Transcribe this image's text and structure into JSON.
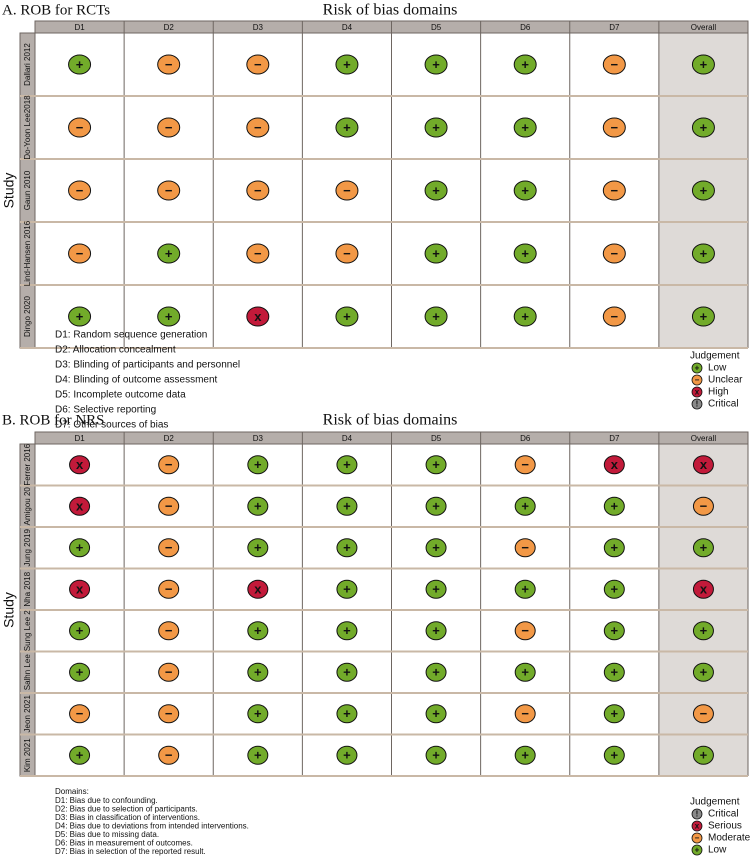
{
  "panels": [
    {
      "label": "A. ROB for RCTs",
      "title": "Risk of bias domains",
      "y_label": "Study",
      "columns": [
        "D1",
        "D2",
        "D3",
        "D4",
        "D5",
        "D6",
        "D7",
        "Overall"
      ],
      "rows": [
        {
          "study": "Dallari 2012",
          "judgements": [
            "Low",
            "Unclear",
            "Unclear",
            "Low",
            "Low",
            "Low",
            "Unclear",
            "Low"
          ]
        },
        {
          "study": "Do-Yoon Lee2018",
          "judgements": [
            "Unclear",
            "Unclear",
            "Unclear",
            "Low",
            "Low",
            "Low",
            "Unclear",
            "Low"
          ]
        },
        {
          "study": "Gaun 2010",
          "judgements": [
            "Unclear",
            "Unclear",
            "Unclear",
            "Unclear",
            "Low",
            "Low",
            "Unclear",
            "Low"
          ]
        },
        {
          "study": "Lind-Hansen 2016",
          "judgements": [
            "Unclear",
            "Low",
            "Unclear",
            "Unclear",
            "Low",
            "Low",
            "Unclear",
            "Low"
          ]
        },
        {
          "study": "Dingo 2020",
          "judgements": [
            "Low",
            "Low",
            "High",
            "Low",
            "Low",
            "Low",
            "Unclear",
            "Low"
          ]
        }
      ],
      "domain_notes": [
        "D1: Random sequence generation",
        "D2: Allocation concealment",
        "D3: Blinding of participants and personnel",
        "D4: Blinding of outcome assessment",
        "D5: Incomplete outcome data",
        "D6: Selective reporting",
        "D7: Other sources of bias"
      ],
      "legend_title": "Judgement",
      "legend": [
        {
          "label": "Low",
          "symbol": "+",
          "color": "#72ab2a"
        },
        {
          "label": "Unclear",
          "symbol": "−",
          "color": "#f29846"
        },
        {
          "label": "High",
          "symbol": "x",
          "color": "#c21a3a"
        },
        {
          "label": "Critical",
          "symbol": "!",
          "color": "#8a8a8a"
        }
      ]
    },
    {
      "label": "B. ROB for NRS",
      "title": "Risk of bias domains",
      "y_label": "Study",
      "columns": [
        "D1",
        "D2",
        "D3",
        "D4",
        "D5",
        "D6",
        "D7",
        "Overall"
      ],
      "rows": [
        {
          "study": "Ferrer 2016",
          "judgements": [
            "Serious",
            "Moderate",
            "Low",
            "Low",
            "Low",
            "Moderate",
            "Serious",
            "Serious"
          ]
        },
        {
          "study": "Amigou 20",
          "judgements": [
            "Serious",
            "Moderate",
            "Low",
            "Low",
            "Low",
            "Low",
            "Low",
            "Moderate"
          ]
        },
        {
          "study": "Jung 2019",
          "judgements": [
            "Low",
            "Moderate",
            "Low",
            "Low",
            "Low",
            "Moderate",
            "Low",
            "Low"
          ]
        },
        {
          "study": "Nha 2018",
          "judgements": [
            "Serious",
            "Moderate",
            "Serious",
            "Low",
            "Low",
            "Low",
            "Low",
            "Serious"
          ]
        },
        {
          "study": "Sung Lee 2",
          "judgements": [
            "Low",
            "Moderate",
            "Low",
            "Low",
            "Low",
            "Moderate",
            "Low",
            "Low"
          ]
        },
        {
          "study": "Salhn Lee",
          "judgements": [
            "Low",
            "Moderate",
            "Low",
            "Low",
            "Low",
            "Low",
            "Low",
            "Low"
          ]
        },
        {
          "study": "Jeon 2021",
          "judgements": [
            "Moderate",
            "Moderate",
            "Low",
            "Low",
            "Low",
            "Moderate",
            "Low",
            "Moderate"
          ]
        },
        {
          "study": "Kim 2021",
          "judgements": [
            "Low",
            "Moderate",
            "Low",
            "Low",
            "Low",
            "Low",
            "Low",
            "Low"
          ]
        }
      ],
      "domain_heading": "Domains:",
      "domain_notes": [
        "D1: Bias due to confounding.",
        "D2: Bias due to selection of participants.",
        "D3: Bias in classification of interventions.",
        "D4: Bias due to deviations from intended interventions.",
        "D5: Bias due to missing data.",
        "D6: Bias in measurement of outcomes.",
        "D7: Bias in selection of the reported result."
      ],
      "legend_title": "Judgement",
      "legend": [
        {
          "label": "Critical",
          "symbol": "!",
          "color": "#8a8a8a"
        },
        {
          "label": "Serious",
          "symbol": "x",
          "color": "#c21a3a"
        },
        {
          "label": "Moderate",
          "symbol": "−",
          "color": "#f29846"
        },
        {
          "label": "Low",
          "symbol": "+",
          "color": "#72ab2a"
        }
      ]
    }
  ]
}
